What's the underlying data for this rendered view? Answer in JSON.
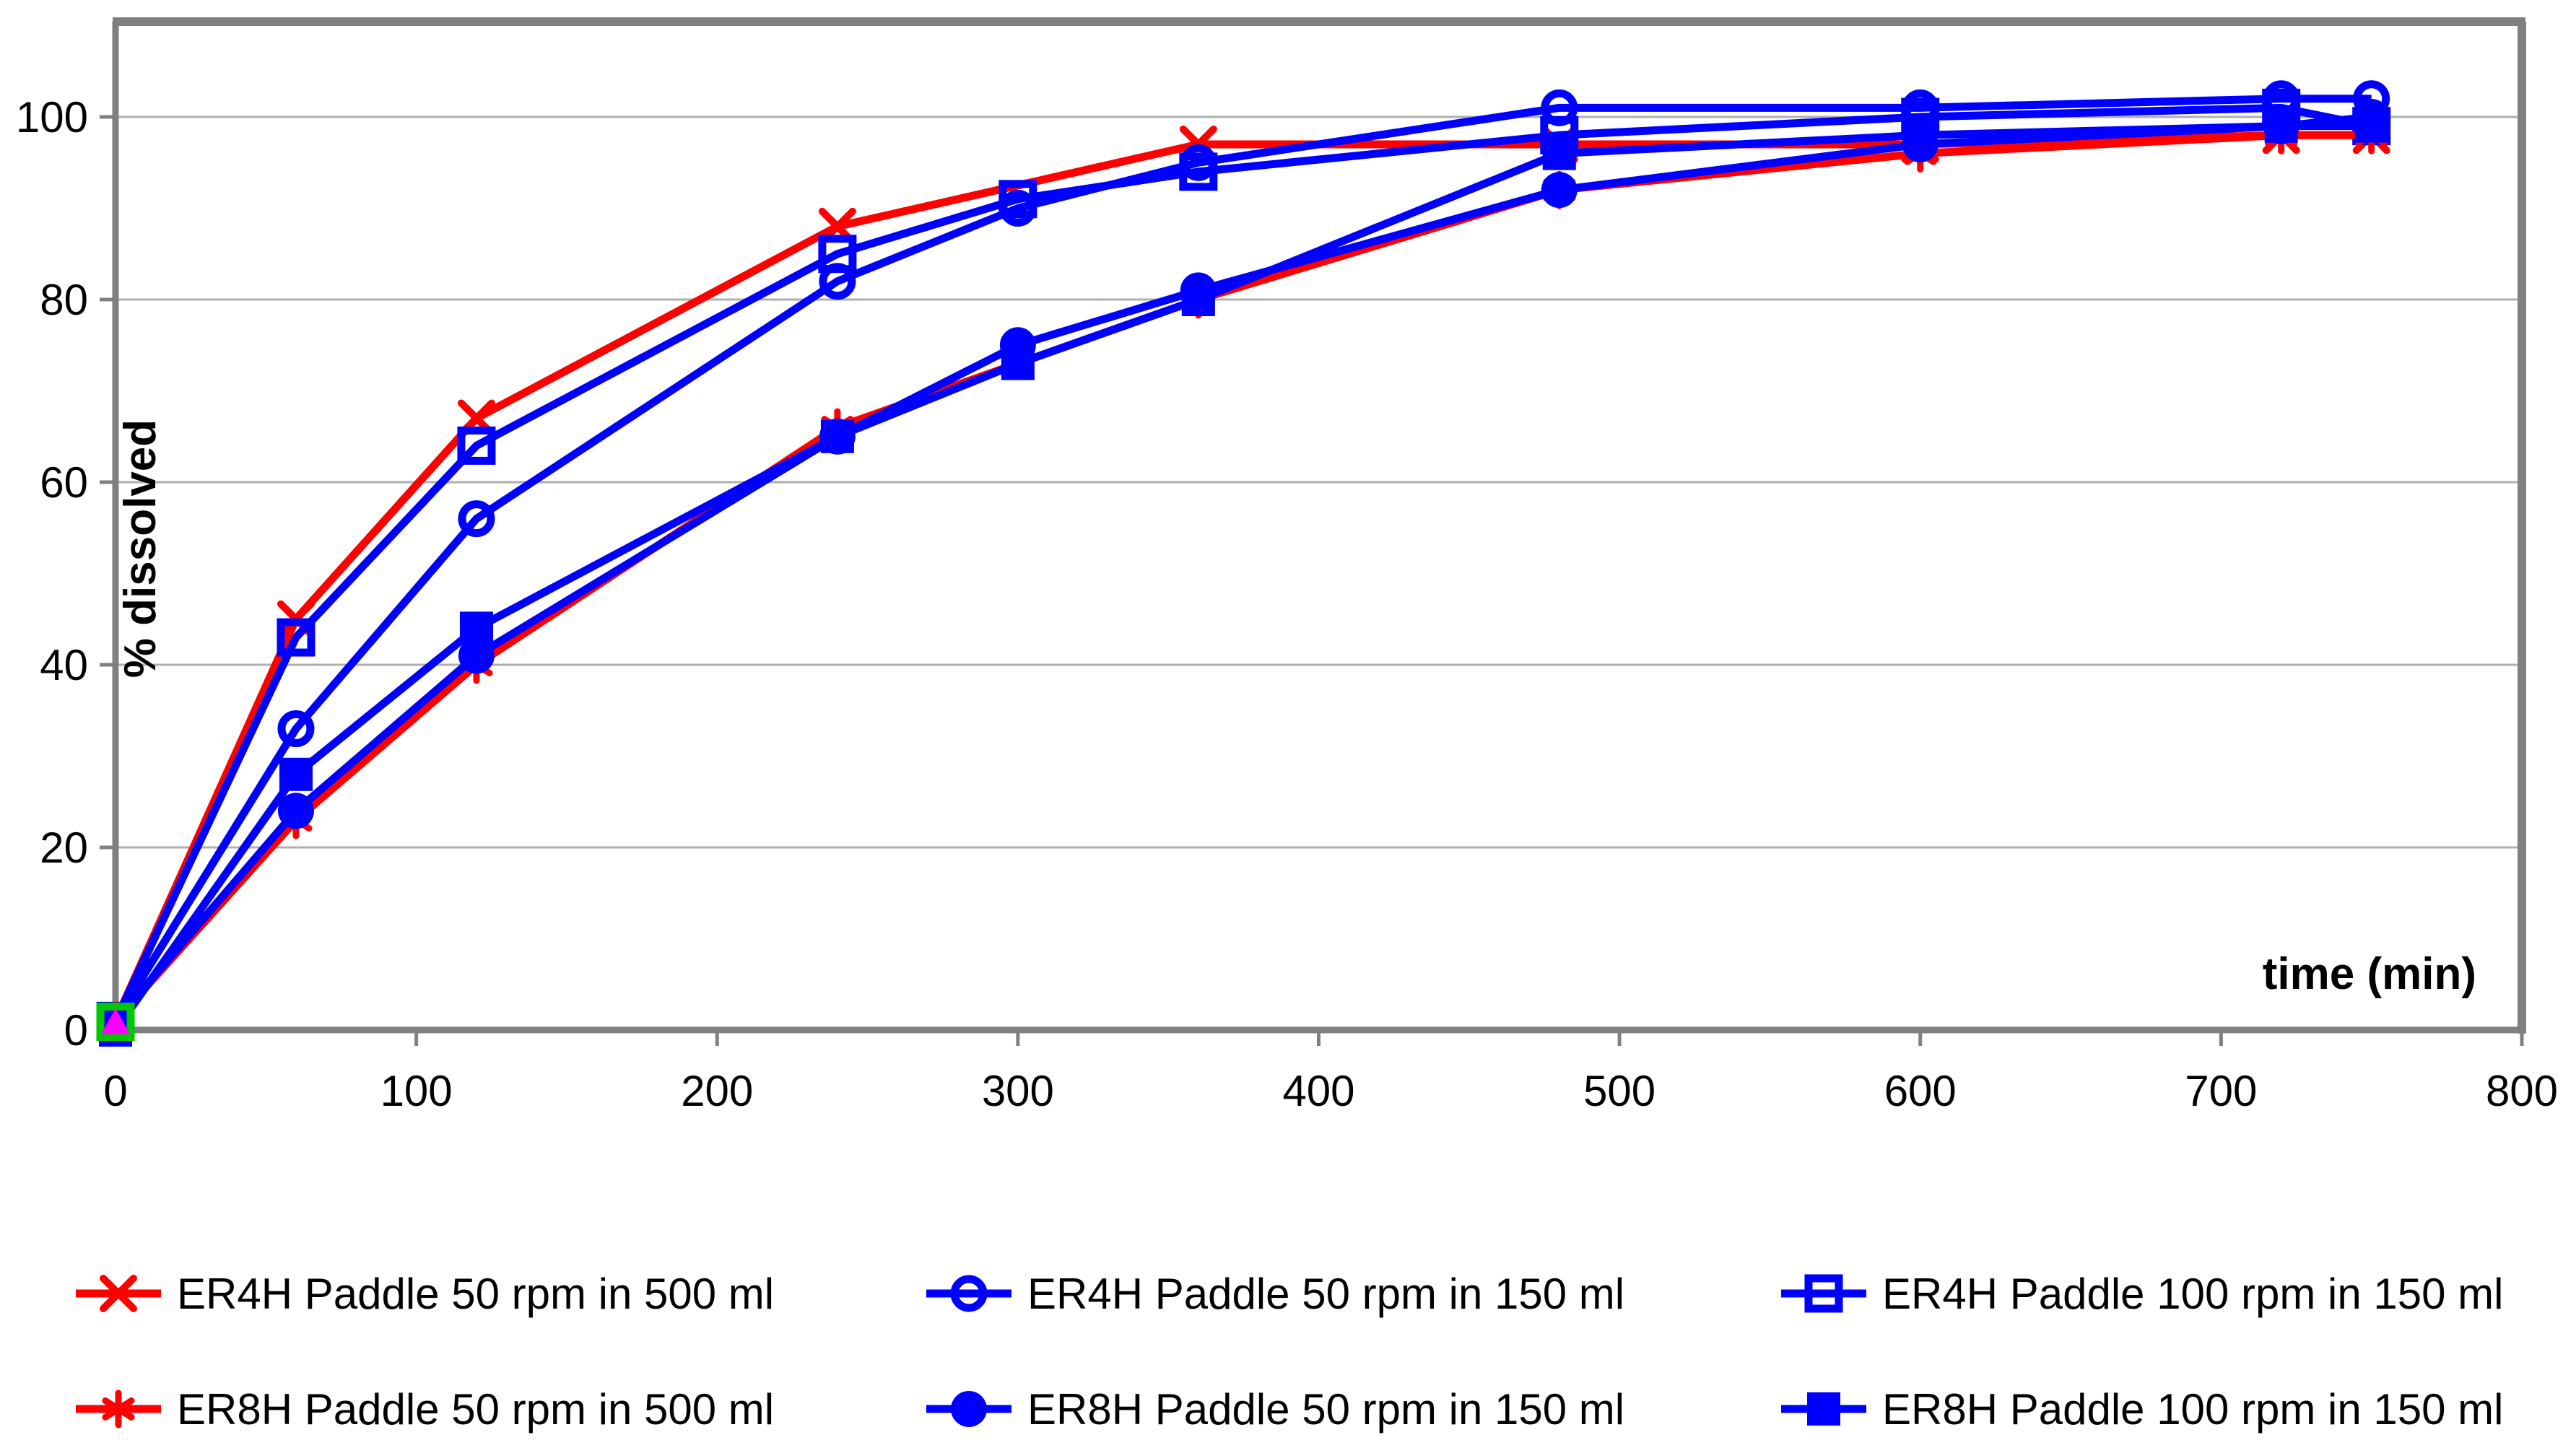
{
  "chart_data": {
    "type": "line",
    "title": "",
    "xlabel": "time (min)",
    "ylabel": "% dissolved",
    "xlim": [
      0,
      800
    ],
    "ylim": [
      0,
      110
    ],
    "x_ticks": [
      0,
      100,
      200,
      300,
      400,
      500,
      600,
      700,
      800
    ],
    "y_ticks": [
      0,
      20,
      40,
      60,
      80,
      100
    ],
    "grid": "horizontal-only",
    "legend_position": "bottom",
    "colors": {
      "red_series": "#FF0000",
      "blue_series": "#0000FF",
      "gridline": "#AFAFAF",
      "axis": "#808080",
      "origin_square": "#00C800",
      "origin_triangle": "#FF00FF",
      "text": "#000000",
      "background": "#FFFFFF"
    },
    "series": [
      {
        "name": "ER4H Paddle 50 rpm  in 500 ml",
        "color": "#FF0000",
        "marker": "x",
        "points": [
          [
            0,
            1
          ],
          [
            60,
            45
          ],
          [
            120,
            67
          ],
          [
            240,
            88
          ],
          [
            360,
            97
          ],
          [
            480,
            97
          ],
          [
            600,
            97
          ],
          [
            720,
            98
          ],
          [
            750,
            98
          ]
        ]
      },
      {
        "name": "ER4H Paddle 50 rpm  in 150 ml",
        "color": "#0000FF",
        "marker": "circle-open",
        "points": [
          [
            0,
            1
          ],
          [
            60,
            33
          ],
          [
            120,
            56
          ],
          [
            240,
            82
          ],
          [
            300,
            90
          ],
          [
            360,
            95
          ],
          [
            480,
            101
          ],
          [
            600,
            101
          ],
          [
            720,
            102
          ],
          [
            750,
            102
          ]
        ]
      },
      {
        "name": "ER4H Paddle 100 rpm  in 150 ml",
        "color": "#0000FF",
        "marker": "square-open",
        "points": [
          [
            0,
            1
          ],
          [
            60,
            43
          ],
          [
            120,
            64
          ],
          [
            240,
            85
          ],
          [
            300,
            91
          ],
          [
            360,
            94
          ],
          [
            480,
            98
          ],
          [
            600,
            100
          ],
          [
            720,
            101
          ],
          [
            750,
            99
          ]
        ]
      },
      {
        "name": "ER8H Paddle 50 rpm  in 500 ml",
        "color": "#FF0000",
        "marker": "asterisk",
        "points": [
          [
            0,
            1
          ],
          [
            60,
            23
          ],
          [
            120,
            40
          ],
          [
            240,
            66
          ],
          [
            360,
            80
          ],
          [
            480,
            92
          ],
          [
            600,
            96
          ],
          [
            720,
            98
          ],
          [
            750,
            98
          ]
        ]
      },
      {
        "name": "ER8H Paddle 50 rpm  in 150 ml",
        "color": "#0000FF",
        "marker": "circle-filled",
        "points": [
          [
            0,
            1
          ],
          [
            60,
            24
          ],
          [
            120,
            41
          ],
          [
            240,
            65
          ],
          [
            300,
            75
          ],
          [
            360,
            81
          ],
          [
            480,
            92
          ],
          [
            600,
            97
          ],
          [
            720,
            99
          ],
          [
            750,
            100
          ]
        ]
      },
      {
        "name": "ER8H Paddle 100 rpm  in 150 ml",
        "color": "#0000FF",
        "marker": "square-filled",
        "points": [
          [
            0,
            0
          ],
          [
            60,
            28
          ],
          [
            120,
            44
          ],
          [
            240,
            65
          ],
          [
            300,
            73
          ],
          [
            360,
            80
          ],
          [
            480,
            96
          ],
          [
            600,
            98
          ],
          [
            720,
            99
          ],
          [
            750,
            99
          ]
        ]
      }
    ],
    "origin_extra_markers": [
      {
        "marker": "square-open",
        "color": "#00C800",
        "x": 0,
        "y": 0.9
      },
      {
        "marker": "triangle-filled",
        "color": "#FF00FF",
        "x": 0,
        "y": 0.8
      }
    ],
    "legend_columns": [
      [
        0,
        3
      ],
      [
        1,
        4
      ],
      [
        2,
        5
      ]
    ]
  }
}
